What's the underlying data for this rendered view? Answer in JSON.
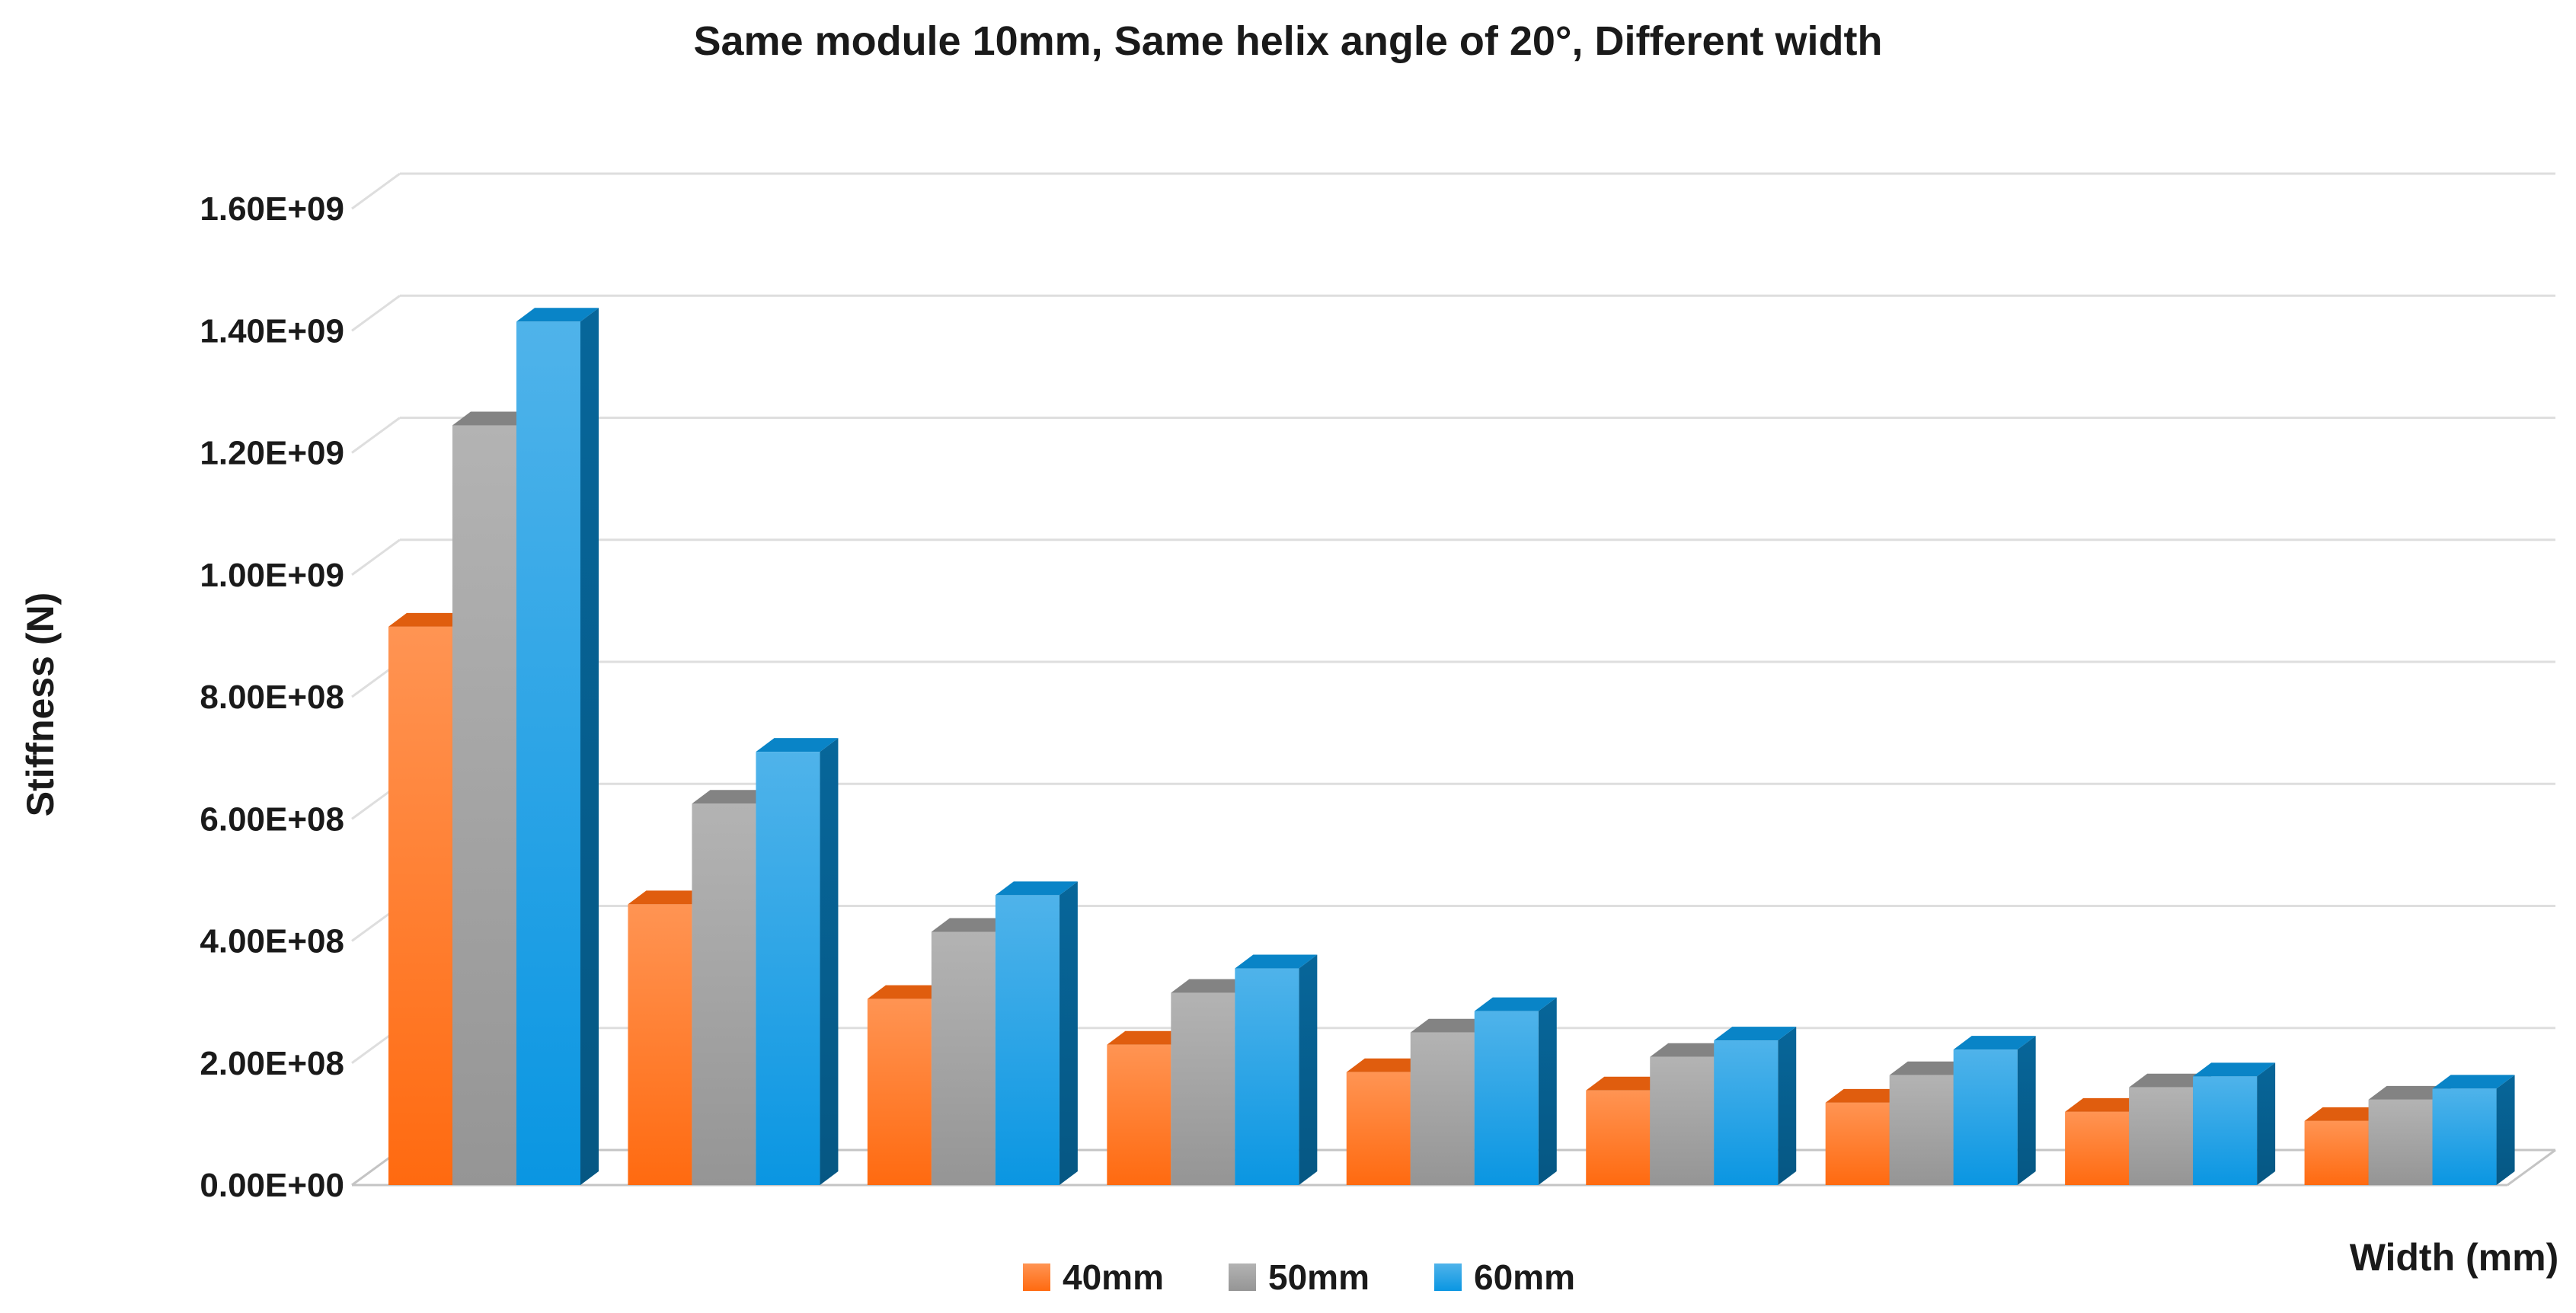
{
  "chart_data": {
    "type": "bar",
    "title": "Same module 10mm, Same helix angle of 20°, Different width",
    "xlabel": "Width (mm)",
    "ylabel": "Stiffness (N)",
    "ylim": [
      0,
      1600000000
    ],
    "yticks": [
      "0.00E+00",
      "2.00E+08",
      "4.00E+08",
      "6.00E+08",
      "8.00E+08",
      "1.00E+09",
      "1.20E+09",
      "1.40E+09",
      "1.60E+09"
    ],
    "categories": [
      "",
      "",
      "",
      "",
      "",
      "",
      "",
      "",
      ""
    ],
    "series": [
      {
        "name": "40mm",
        "color": "#FF6A10",
        "values": [
          915000000,
          460000000,
          305000000,
          230000000,
          185000000,
          155000000,
          135000000,
          120000000,
          105000000
        ]
      },
      {
        "name": "50mm",
        "color": "#959595",
        "values": [
          1245000000,
          625000000,
          415000000,
          315000000,
          250000000,
          210000000,
          180000000,
          160000000,
          140000000
        ]
      },
      {
        "name": "60mm",
        "color": "#0A96E2",
        "values": [
          1415000000,
          710000000,
          475000000,
          355000000,
          285000000,
          237000000,
          222000000,
          178000000,
          158000000
        ]
      }
    ],
    "grid": true,
    "legend_position": "bottom"
  }
}
